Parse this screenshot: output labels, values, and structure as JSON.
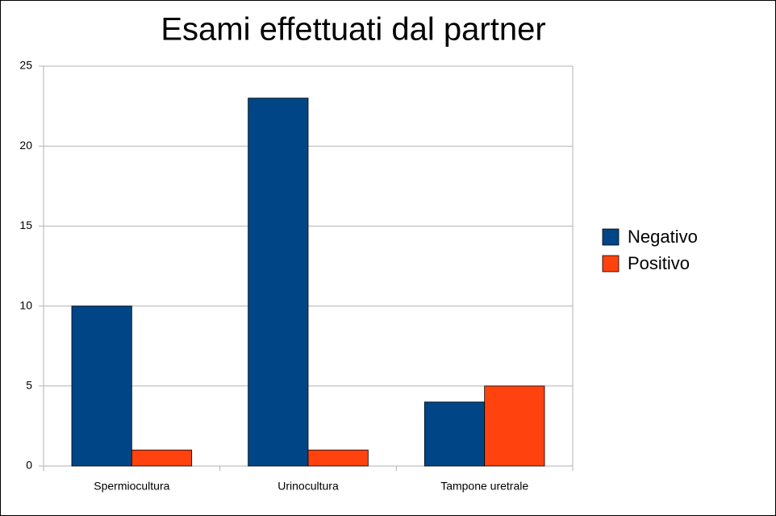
{
  "chart_data": {
    "type": "bar",
    "title": "Esami effettuati dal partner",
    "categories": [
      "Spermiocultura",
      "Urinocultura",
      "Tampone uretrale"
    ],
    "series": [
      {
        "name": "Negativo",
        "color": "#004586",
        "values": [
          10,
          23,
          4
        ]
      },
      {
        "name": "Positivo",
        "color": "#ff420e",
        "values": [
          1,
          1,
          5
        ]
      }
    ],
    "ylim": [
      0,
      25
    ],
    "yticks": [
      0,
      5,
      10,
      15,
      20,
      25
    ],
    "grid": true,
    "legend": "right"
  }
}
